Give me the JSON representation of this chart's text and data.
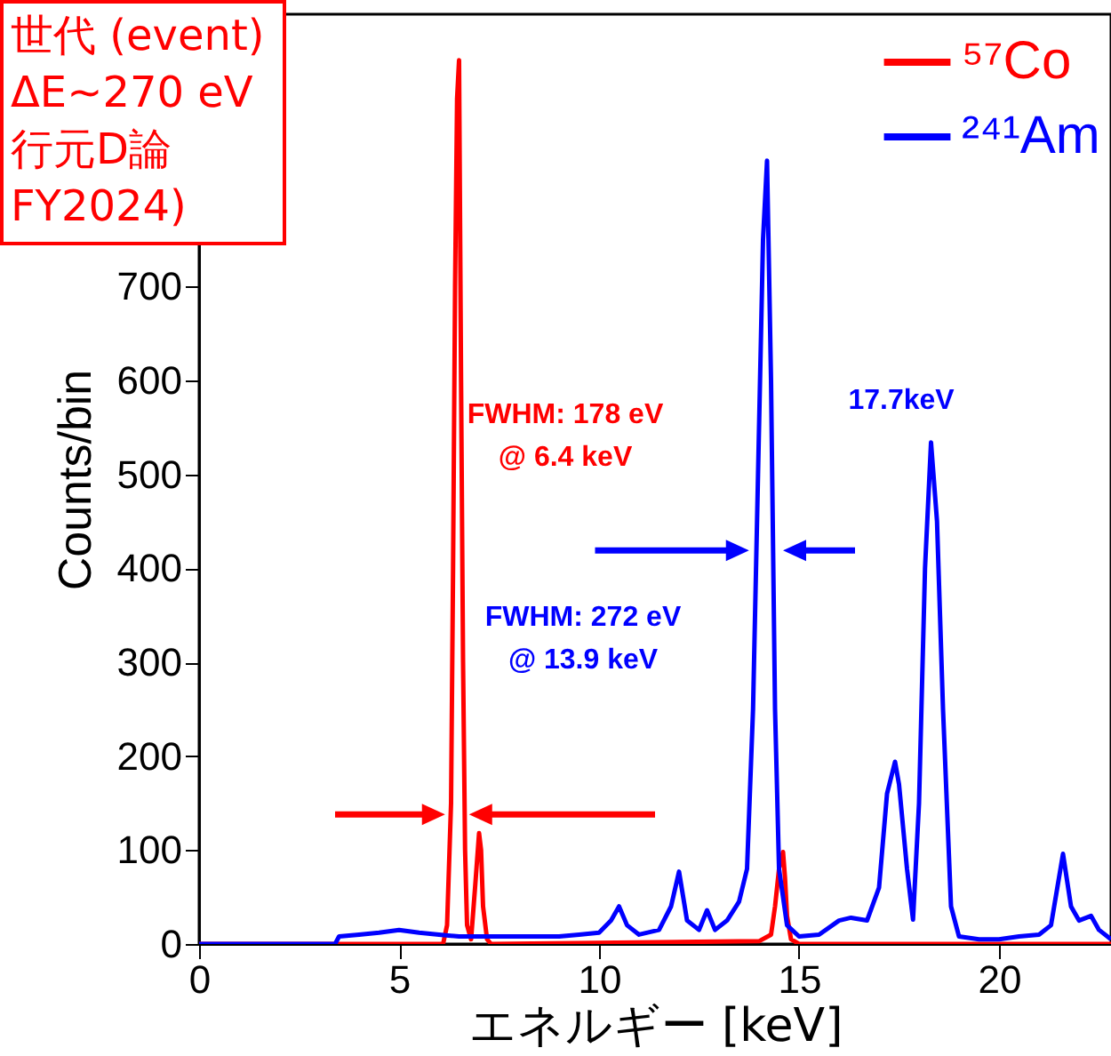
{
  "chart_data": {
    "type": "line",
    "xlabel": "エネルギー [keV]",
    "ylabel": "Counts/bin",
    "xlim": [
      0,
      22.8
    ],
    "xticks": [
      0,
      5,
      10,
      15,
      20
    ],
    "ylim": [
      0,
      990
    ],
    "yticks": [
      0,
      100,
      200,
      300,
      400,
      500,
      600,
      700
    ],
    "grid": false,
    "legend": "top right",
    "annotations": [
      "世代 (event)",
      "ΔE~270 eV",
      "行元D論",
      "FY2024)",
      "FWHM: 178 eV\n@ 6.4 keV",
      "FWHM: 272 eV\n@ 13.9 keV",
      "17.7keV"
    ],
    "series": [
      {
        "name": "⁵⁷Co",
        "color": "#ff0000",
        "x": [
          0,
          6.1,
          6.2,
          6.3,
          6.35,
          6.4,
          6.45,
          6.5,
          6.55,
          6.6,
          6.65,
          6.7,
          6.8,
          6.9,
          7.0,
          7.05,
          7.1,
          7.2,
          7.3,
          14.0,
          14.3,
          14.4,
          14.5,
          14.6,
          14.65,
          14.7,
          14.8,
          15.0,
          22.8
        ],
        "values": [
          0,
          0,
          20,
          150,
          400,
          700,
          900,
          941,
          600,
          300,
          100,
          20,
          5,
          60,
          118,
          100,
          40,
          5,
          0,
          3,
          10,
          40,
          80,
          98,
          70,
          30,
          5,
          0,
          0
        ]
      },
      {
        "name": "²⁴¹Am",
        "color": "#0000ff",
        "x": [
          0,
          3.4,
          3.5,
          4,
          4.5,
          5,
          5.5,
          6,
          6.5,
          7,
          7.5,
          8,
          8.5,
          9,
          9.5,
          10,
          10.3,
          10.5,
          10.7,
          11,
          11.5,
          11.8,
          12.0,
          12.2,
          12.5,
          12.7,
          12.9,
          13.2,
          13.5,
          13.7,
          13.85,
          14.0,
          14.1,
          14.2,
          14.3,
          14.4,
          14.5,
          14.7,
          15.0,
          15.5,
          16.0,
          16.3,
          16.7,
          17.0,
          17.2,
          17.4,
          17.5,
          17.7,
          17.85,
          18.0,
          18.15,
          18.3,
          18.45,
          18.6,
          18.8,
          19.0,
          19.5,
          20,
          20.5,
          21,
          21.3,
          21.6,
          21.8,
          22.0,
          22.3,
          22.5,
          22.8
        ],
        "values": [
          0,
          0,
          8,
          10,
          12,
          15,
          12,
          10,
          8,
          8,
          8,
          8,
          8,
          8,
          10,
          12,
          25,
          40,
          20,
          10,
          15,
          40,
          77,
          25,
          15,
          36,
          15,
          25,
          45,
          80,
          250,
          550,
          750,
          834,
          600,
          250,
          80,
          20,
          8,
          10,
          25,
          28,
          25,
          60,
          160,
          194,
          170,
          80,
          26,
          150,
          400,
          534,
          450,
          250,
          40,
          8,
          5,
          5,
          8,
          10,
          20,
          96,
          40,
          25,
          30,
          15,
          5
        ]
      }
    ]
  }
}
